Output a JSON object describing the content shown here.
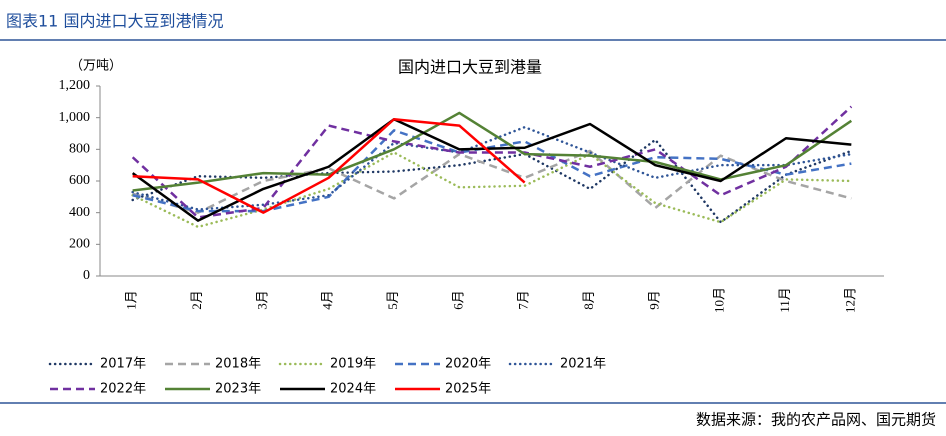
{
  "header": {
    "title": "图表11 国内进口大豆到港情况"
  },
  "chart_data": {
    "type": "line",
    "title": "国内进口大豆到港量",
    "y_axis_label": "（万吨）",
    "categories": [
      "1月",
      "2月",
      "3月",
      "4月",
      "5月",
      "6月",
      "7月",
      "8月",
      "9月",
      "10月",
      "11月",
      "12月"
    ],
    "ylim": [
      0,
      1200
    ],
    "yticks": [
      0,
      200,
      400,
      600,
      800,
      {
        "value": 1000,
        "label": "1,000"
      },
      {
        "value": 1200,
        "label": "1,200"
      }
    ],
    "series": [
      {
        "name": "2017年",
        "color": "#1f3864",
        "style": "dotted",
        "values": [
          480,
          630,
          620,
          650,
          660,
          700,
          770,
          550,
          860,
          340,
          640,
          790
        ]
      },
      {
        "name": "2018年",
        "color": "#a5a5a5",
        "style": "dashed",
        "values": [
          520,
          400,
          600,
          680,
          490,
          770,
          620,
          790,
          430,
          760,
          600,
          490
        ]
      },
      {
        "name": "2019年",
        "color": "#9bbb59",
        "style": "dotted",
        "values": [
          510,
          310,
          420,
          550,
          780,
          560,
          570,
          770,
          460,
          340,
          610,
          600
        ]
      },
      {
        "name": "2020年",
        "color": "#4472c4",
        "style": "dashed",
        "values": [
          510,
          410,
          410,
          500,
          920,
          780,
          850,
          630,
          750,
          740,
          640,
          710
        ]
      },
      {
        "name": "2021年",
        "color": "#2f5597",
        "style": "dotted",
        "values": [
          530,
          420,
          450,
          510,
          840,
          780,
          940,
          780,
          620,
          700,
          700,
          770
        ]
      },
      {
        "name": "2022年",
        "color": "#7030a0",
        "style": "dashed",
        "values": [
          750,
          370,
          430,
          950,
          850,
          780,
          780,
          690,
          800,
          510,
          690,
          1070
        ]
      },
      {
        "name": "2023年",
        "color": "#548235",
        "style": "solid",
        "values": [
          540,
          590,
          650,
          640,
          800,
          1030,
          770,
          760,
          720,
          610,
          700,
          980
        ]
      },
      {
        "name": "2024年",
        "color": "#000000",
        "style": "solid",
        "values": [
          650,
          350,
          550,
          690,
          990,
          800,
          810,
          960,
          700,
          600,
          870,
          830
        ]
      },
      {
        "name": "2025年",
        "color": "#ff0000",
        "style": "solid",
        "values": [
          630,
          610,
          400,
          620,
          990,
          950,
          590,
          null,
          null,
          null,
          null,
          null
        ]
      }
    ]
  },
  "footer": {
    "source": "数据来源：我的农产品网、国元期货"
  }
}
